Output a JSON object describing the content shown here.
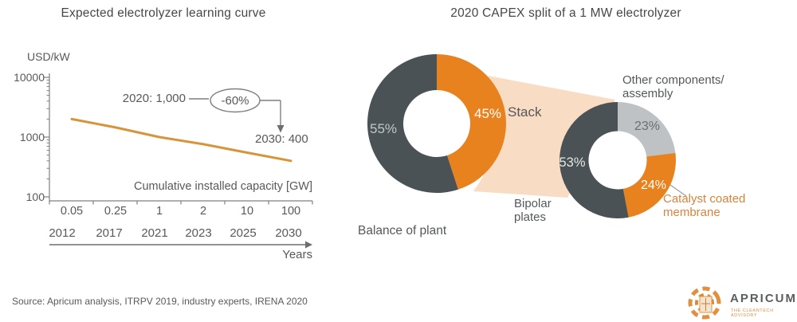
{
  "source": "Source: Apricum analysis, ITRPV 2019, industry experts, IRENA 2020",
  "logo": {
    "name": "APRICUM",
    "tagline": "THE CLEANTECH ADVISORY"
  },
  "colors": {
    "orange": "#E8821E",
    "dark_slate": "#4B5255",
    "light_gray": "#BEC2C4",
    "funnel": "#F8DCC3",
    "line": "#D6953C",
    "axis": "#808080",
    "connector": "#9AA0A2"
  },
  "chart_data": [
    {
      "type": "line",
      "title": "Expected electrolyzer learning curve",
      "ylabel": "USD/kW",
      "xlabel": "Cumulative installed capacity [GW]",
      "timeline_label": "Years",
      "y_scale": "log",
      "ylim": [
        100,
        10000
      ],
      "y_ticks": [
        "10000",
        "1000",
        "100"
      ],
      "categories_gw": [
        "0.05",
        "0.25",
        "1",
        "2",
        "10",
        "100"
      ],
      "years": [
        "2012",
        "2017",
        "2021",
        "2023",
        "2025",
        "2030"
      ],
      "values_usd_per_kw": [
        2000,
        1450,
        1000,
        760,
        550,
        400
      ],
      "grid": false,
      "annotations": {
        "point_2020": "2020: 1,000",
        "change": "-60%",
        "point_2030": "2030: 400"
      }
    },
    {
      "type": "pie",
      "subtype": "donut-pair",
      "title": "2020 CAPEX split of a 1 MW electrolyzer",
      "outer_donut": {
        "segments": [
          {
            "label": "Stack",
            "value": 45,
            "pct_label": "45%",
            "color_key": "orange"
          },
          {
            "label": "Balance of plant",
            "value": 55,
            "pct_label": "55%",
            "color_key": "dark_slate"
          }
        ]
      },
      "stack_donut": {
        "segments": [
          {
            "label": "Other components/assembly",
            "label_lines": [
              "Other components/",
              "assembly"
            ],
            "value": 23,
            "pct_label": "23%",
            "color_key": "light_gray"
          },
          {
            "label": "Catalyst coated membrane",
            "label_lines": [
              "Catalyst coated",
              "membrane"
            ],
            "value": 24,
            "pct_label": "24%",
            "color_key": "orange"
          },
          {
            "label": "Bipolar plates",
            "label_lines": [
              "Bipolar",
              "plates"
            ],
            "value": 53,
            "pct_label": "53%",
            "color_key": "dark_slate"
          }
        ]
      }
    }
  ]
}
